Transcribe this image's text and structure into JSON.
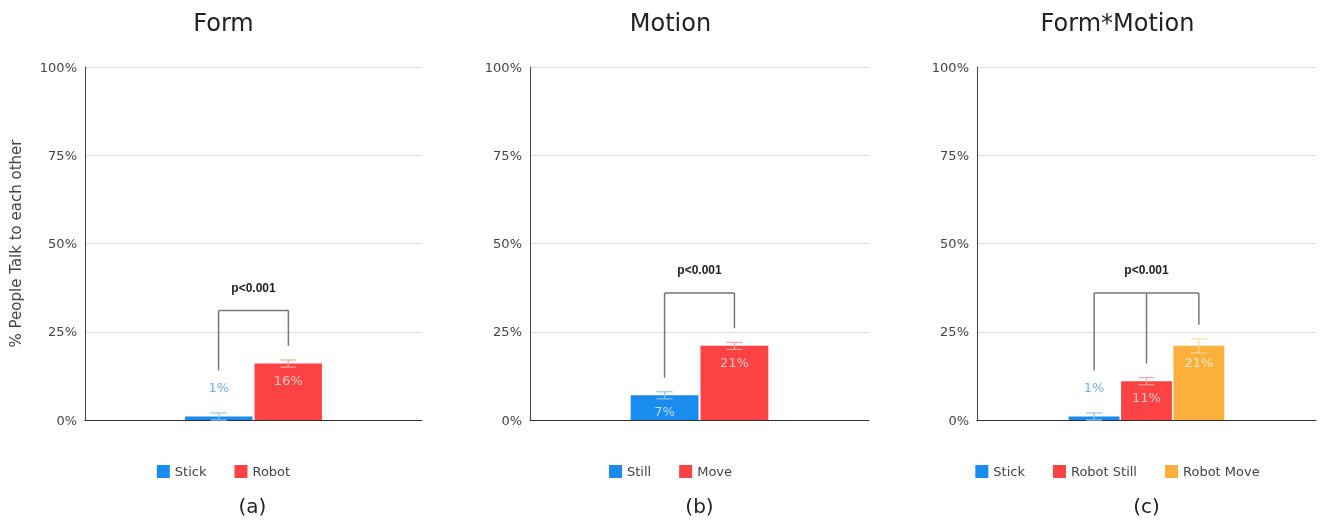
{
  "chart_data": [
    {
      "type": "bar",
      "title": "Form",
      "ylabel": "% People Talk to each other",
      "categories": [
        null
      ],
      "series": [
        {
          "name": "Stick",
          "color": "#1a8cf0",
          "values": [
            1
          ],
          "errors": [
            1
          ],
          "value_labels": [
            "1%"
          ]
        },
        {
          "name": "Robot",
          "color": "#fc4242",
          "values": [
            16
          ],
          "errors": [
            1
          ],
          "value_labels": [
            "16%"
          ]
        }
      ],
      "ylim": [
        0,
        100
      ],
      "yticks": [
        {
          "value": 0,
          "label": "0%"
        },
        {
          "value": 25,
          "label": "25%"
        },
        {
          "value": 50,
          "label": "50%"
        },
        {
          "value": 75,
          "label": "75%"
        },
        {
          "value": 100,
          "label": "100%"
        }
      ],
      "grid": "y",
      "legend": "bottom",
      "annotations": [
        "p<0.001",
        "(a)"
      ]
    },
    {
      "type": "bar",
      "title": "Motion",
      "categories": [
        null
      ],
      "series": [
        {
          "name": "Still",
          "color": "#1a8cf0",
          "values": [
            7
          ],
          "errors": [
            1
          ],
          "value_labels": [
            "7%"
          ]
        },
        {
          "name": "Move",
          "color": "#fc4242",
          "values": [
            21
          ],
          "errors": [
            1
          ],
          "value_labels": [
            "21%"
          ]
        }
      ],
      "ylim": [
        0,
        100
      ],
      "yticks": [
        {
          "value": 0,
          "label": "0%"
        },
        {
          "value": 25,
          "label": "25%"
        },
        {
          "value": 50,
          "label": "50%"
        },
        {
          "value": 75,
          "label": "75%"
        },
        {
          "value": 100,
          "label": "100%"
        }
      ],
      "grid": "y",
      "legend": "bottom",
      "annotations": [
        "p<0.001",
        "(b)"
      ]
    },
    {
      "type": "bar",
      "title": "Form*Motion",
      "categories": [
        null
      ],
      "series": [
        {
          "name": "Stick",
          "color": "#1a8cf0",
          "values": [
            1
          ],
          "errors": [
            1
          ],
          "value_labels": [
            "1%"
          ]
        },
        {
          "name": "Robot Still",
          "color": "#fc4242",
          "values": [
            11
          ],
          "errors": [
            1
          ],
          "value_labels": [
            "11%"
          ]
        },
        {
          "name": "Robot Move",
          "color": "#fbb03b",
          "values": [
            21
          ],
          "errors": [
            2
          ],
          "value_labels": [
            "21%"
          ]
        }
      ],
      "ylim": [
        0,
        100
      ],
      "yticks": [
        {
          "value": 0,
          "label": "0%"
        },
        {
          "value": 25,
          "label": "25%"
        },
        {
          "value": 50,
          "label": "50%"
        },
        {
          "value": 75,
          "label": "75%"
        },
        {
          "value": 100,
          "label": "100%"
        }
      ],
      "grid": "y",
      "legend": "bottom",
      "annotations": [
        "p<0.001",
        "(c)"
      ]
    }
  ]
}
